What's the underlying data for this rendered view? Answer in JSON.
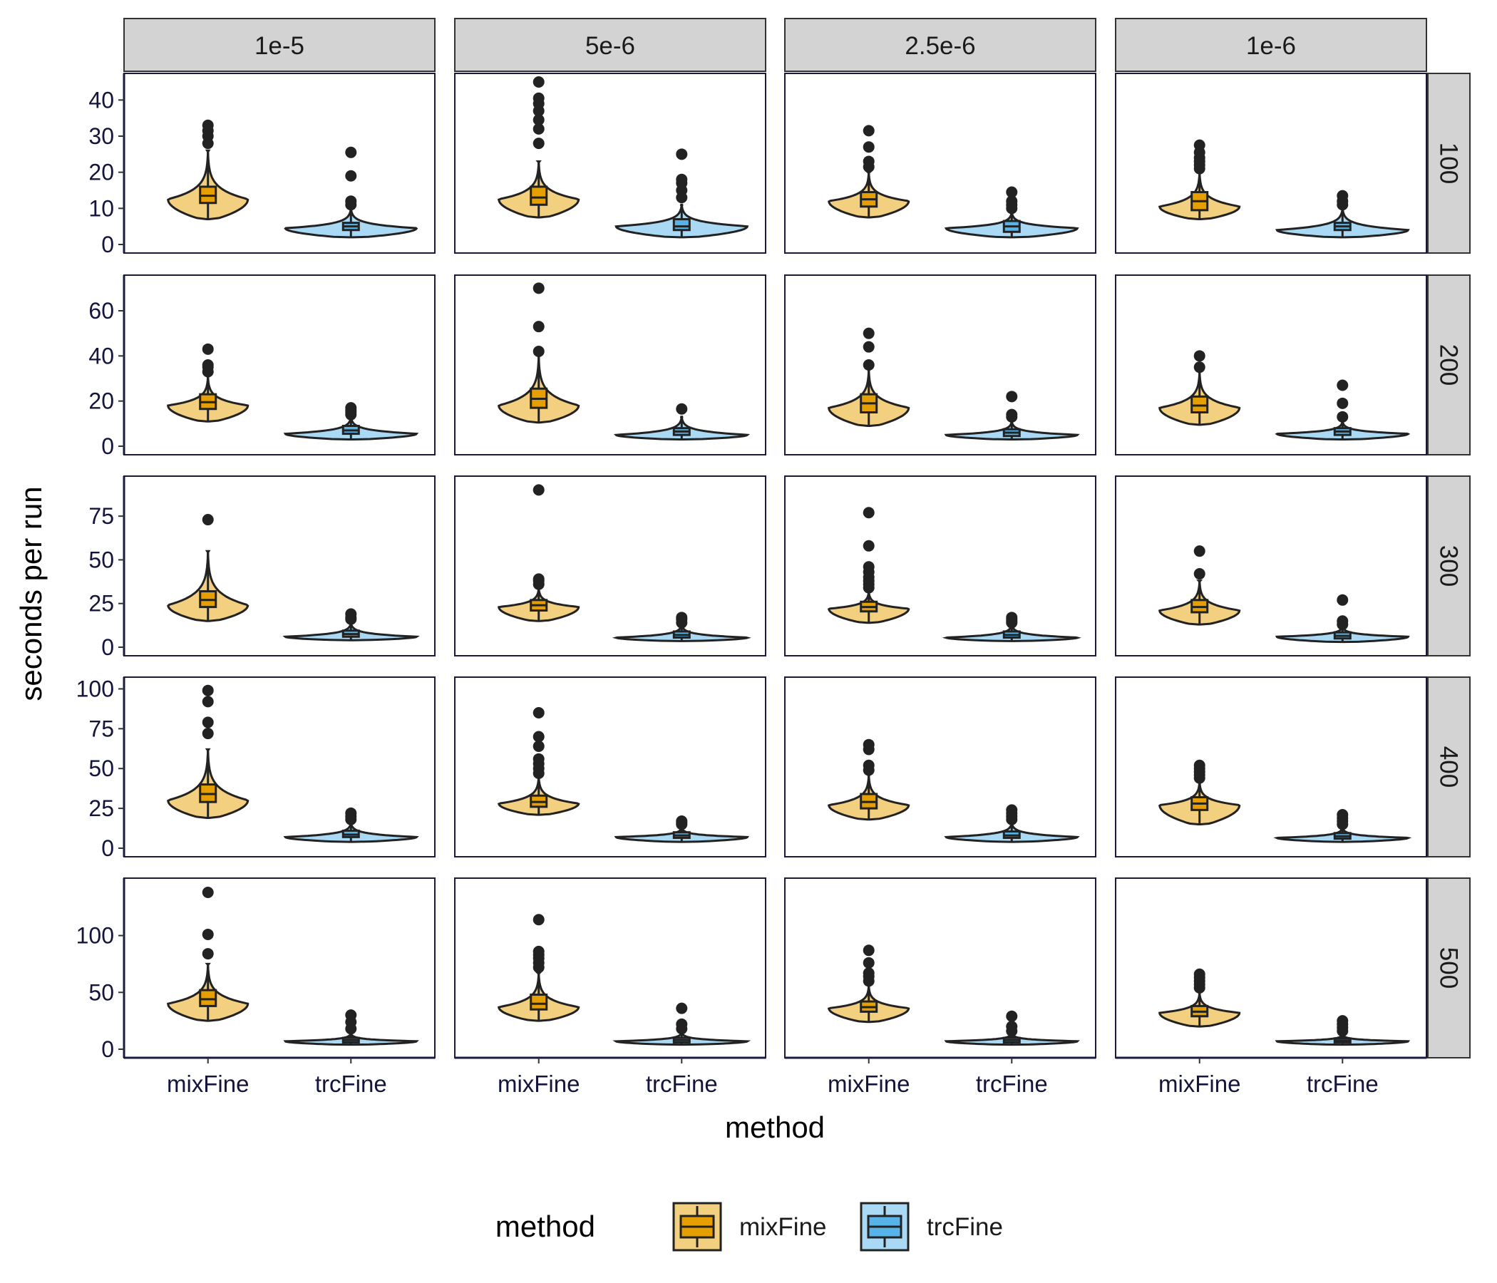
{
  "chart_data": {
    "type": "violin",
    "title": "",
    "xlabel": "method",
    "ylabel": "seconds per run",
    "categories": [
      "mixFine",
      "trcFine"
    ],
    "col_facets": [
      "1e-5",
      "5e-6",
      "2.5e-6",
      "1e-6"
    ],
    "row_facets": [
      "100",
      "200",
      "300",
      "400",
      "500"
    ],
    "grid": false,
    "legend": {
      "title": "method",
      "position": "bottom",
      "entries": [
        {
          "name": "mixFine",
          "box_color": "#E69F00",
          "violin_color": "#F3CF80"
        },
        {
          "name": "trcFine",
          "box_color": "#56B4E9",
          "violin_color": "#A9D9F4"
        }
      ]
    },
    "rows": [
      {
        "ylim": [
          0,
          45
        ],
        "yticks": [
          0,
          10,
          20,
          30,
          40
        ]
      },
      {
        "ylim": [
          0,
          72
        ],
        "yticks": [
          0,
          20,
          40,
          60
        ]
      },
      {
        "ylim": [
          0,
          93
        ],
        "yticks": [
          0,
          25,
          50,
          75
        ]
      },
      {
        "ylim": [
          0,
          102
        ],
        "yticks": [
          0,
          25,
          50,
          75,
          100
        ]
      },
      {
        "ylim": [
          0,
          143
        ],
        "yticks": [
          0,
          50,
          100
        ]
      }
    ],
    "panels": [
      {
        "row": "100",
        "col": "1e-5",
        "groups": [
          {
            "method": "mixFine",
            "min": 7,
            "q1": 11.5,
            "median": 13.5,
            "q3": 16,
            "max": 26,
            "mode": 12.5,
            "outliers": [
              28,
              30,
              31.5,
              33
            ]
          },
          {
            "method": "trcFine",
            "min": 2,
            "q1": 4,
            "median": 5,
            "q3": 6,
            "max": 10,
            "mode": 4.5,
            "outliers": [
              11,
              12,
              19,
              25.5
            ]
          }
        ]
      },
      {
        "row": "100",
        "col": "5e-6",
        "groups": [
          {
            "method": "mixFine",
            "min": 7.5,
            "q1": 11,
            "median": 13,
            "q3": 16,
            "max": 23,
            "mode": 12.5,
            "outliers": [
              28,
              32,
              34.5,
              37,
              39,
              40.5,
              45
            ]
          },
          {
            "method": "trcFine",
            "min": 2,
            "q1": 4,
            "median": 5,
            "q3": 7,
            "max": 11,
            "mode": 5,
            "outliers": [
              13,
              15,
              17,
              18,
              25
            ]
          }
        ]
      },
      {
        "row": "100",
        "col": "2.5e-6",
        "groups": [
          {
            "method": "mixFine",
            "min": 7.5,
            "q1": 10.5,
            "median": 12.5,
            "q3": 14.5,
            "max": 20,
            "mode": 12,
            "outliers": [
              21.5,
              23,
              27,
              31.5
            ]
          },
          {
            "method": "trcFine",
            "min": 2,
            "q1": 3.5,
            "median": 5,
            "q3": 6.5,
            "max": 9,
            "mode": 4.5,
            "outliers": [
              10,
              11,
              12,
              14.5
            ]
          }
        ]
      },
      {
        "row": "100",
        "col": "1e-6",
        "groups": [
          {
            "method": "mixFine",
            "min": 7,
            "q1": 9.5,
            "median": 12,
            "q3": 14.5,
            "max": 20,
            "mode": 10.5,
            "outliers": [
              21,
              22,
              23,
              24,
              25.5,
              27.5
            ]
          },
          {
            "method": "trcFine",
            "min": 2,
            "q1": 4,
            "median": 5,
            "q3": 6,
            "max": 10,
            "mode": 4,
            "outliers": [
              11,
              12,
              13.5
            ]
          }
        ]
      },
      {
        "row": "200",
        "col": "1e-5",
        "groups": [
          {
            "method": "mixFine",
            "min": 11,
            "q1": 16.5,
            "median": 19.5,
            "q3": 23,
            "max": 31,
            "mode": 18,
            "outliers": [
              33,
              35,
              36,
              43
            ]
          },
          {
            "method": "trcFine",
            "min": 3,
            "q1": 5.5,
            "median": 7,
            "q3": 9,
            "max": 13,
            "mode": 5.5,
            "outliers": [
              14,
              15,
              16,
              17
            ]
          }
        ]
      },
      {
        "row": "200",
        "col": "5e-6",
        "groups": [
          {
            "method": "mixFine",
            "min": 10.5,
            "q1": 17,
            "median": 21,
            "q3": 25.5,
            "max": 40,
            "mode": 18,
            "outliers": [
              42,
              53,
              70
            ]
          },
          {
            "method": "trcFine",
            "min": 3,
            "q1": 5,
            "median": 6.5,
            "q3": 8,
            "max": 13,
            "mode": 5,
            "outliers": [
              16.5
            ]
          }
        ]
      },
      {
        "row": "200",
        "col": "2.5e-6",
        "groups": [
          {
            "method": "mixFine",
            "min": 9,
            "q1": 15,
            "median": 19,
            "q3": 23,
            "max": 34,
            "mode": 17,
            "outliers": [
              36,
              44,
              50
            ]
          },
          {
            "method": "trcFine",
            "min": 3,
            "q1": 4.5,
            "median": 6,
            "q3": 7.5,
            "max": 11,
            "mode": 5,
            "outliers": [
              13,
              14,
              22
            ]
          }
        ]
      },
      {
        "row": "200",
        "col": "1e-6",
        "groups": [
          {
            "method": "mixFine",
            "min": 9.5,
            "q1": 15,
            "median": 18,
            "q3": 22,
            "max": 33,
            "mode": 17,
            "outliers": [
              35,
              40
            ]
          },
          {
            "method": "trcFine",
            "min": 3,
            "q1": 5,
            "median": 6.5,
            "q3": 8,
            "max": 11,
            "mode": 5.5,
            "outliers": [
              13,
              19,
              27
            ]
          }
        ]
      },
      {
        "row": "300",
        "col": "1e-5",
        "groups": [
          {
            "method": "mixFine",
            "min": 15,
            "q1": 23,
            "median": 27,
            "q3": 32,
            "max": 55,
            "mode": 24,
            "outliers": [
              73
            ]
          },
          {
            "method": "trcFine",
            "min": 4,
            "q1": 6,
            "median": 7.5,
            "q3": 9.5,
            "max": 14,
            "mode": 6,
            "outliers": [
              16,
              17,
              19
            ]
          }
        ]
      },
      {
        "row": "300",
        "col": "5e-6",
        "groups": [
          {
            "method": "mixFine",
            "min": 15,
            "q1": 21,
            "median": 24,
            "q3": 27,
            "max": 34,
            "mode": 23,
            "outliers": [
              36,
              38,
              39,
              90
            ]
          },
          {
            "method": "trcFine",
            "min": 3.5,
            "q1": 5.5,
            "median": 7,
            "q3": 9,
            "max": 13,
            "mode": 5.5,
            "outliers": [
              14,
              16,
              17
            ]
          }
        ]
      },
      {
        "row": "300",
        "col": "2.5e-6",
        "groups": [
          {
            "method": "mixFine",
            "min": 14,
            "q1": 20.5,
            "median": 23,
            "q3": 26,
            "max": 32,
            "mode": 22,
            "outliers": [
              34,
              36,
              38,
              40,
              43,
              46,
              58,
              77
            ]
          },
          {
            "method": "trcFine",
            "min": 3.5,
            "q1": 5.5,
            "median": 7,
            "q3": 9,
            "max": 13,
            "mode": 5.5,
            "outliers": [
              14,
              15,
              16,
              17
            ]
          }
        ]
      },
      {
        "row": "300",
        "col": "1e-6",
        "groups": [
          {
            "method": "mixFine",
            "min": 13,
            "q1": 20,
            "median": 23,
            "q3": 27,
            "max": 38,
            "mode": 21,
            "outliers": [
              42,
              55
            ]
          },
          {
            "method": "trcFine",
            "min": 3,
            "q1": 5,
            "median": 6.5,
            "q3": 8.5,
            "max": 12,
            "mode": 6,
            "outliers": [
              13,
              15,
              27
            ]
          }
        ]
      },
      {
        "row": "400",
        "col": "1e-5",
        "groups": [
          {
            "method": "mixFine",
            "min": 19,
            "q1": 29,
            "median": 34,
            "q3": 40,
            "max": 62,
            "mode": 30,
            "outliers": [
              72,
              79,
              92,
              99
            ]
          },
          {
            "method": "trcFine",
            "min": 4,
            "q1": 7,
            "median": 8.5,
            "q3": 11,
            "max": 16,
            "mode": 7,
            "outliers": [
              18,
              20,
              22
            ]
          }
        ]
      },
      {
        "row": "400",
        "col": "5e-6",
        "groups": [
          {
            "method": "mixFine",
            "min": 21,
            "q1": 26,
            "median": 29,
            "q3": 33,
            "max": 45,
            "mode": 28,
            "outliers": [
              47,
              50,
              53,
              56,
              64,
              70,
              85
            ]
          },
          {
            "method": "trcFine",
            "min": 4,
            "q1": 6.5,
            "median": 8,
            "q3": 10,
            "max": 13,
            "mode": 7,
            "outliers": [
              15,
              16,
              17
            ]
          }
        ]
      },
      {
        "row": "400",
        "col": "2.5e-6",
        "groups": [
          {
            "method": "mixFine",
            "min": 18,
            "q1": 25,
            "median": 29,
            "q3": 34,
            "max": 46,
            "mode": 27,
            "outliers": [
              49,
              52,
              62,
              65
            ]
          },
          {
            "method": "trcFine",
            "min": 4,
            "q1": 6.5,
            "median": 8,
            "q3": 10.5,
            "max": 16,
            "mode": 7,
            "outliers": [
              18,
              20,
              22,
              24
            ]
          }
        ]
      },
      {
        "row": "400",
        "col": "1e-6",
        "groups": [
          {
            "method": "mixFine",
            "min": 15,
            "q1": 24,
            "median": 28,
            "q3": 32,
            "max": 42,
            "mode": 27,
            "outliers": [
              44,
              46,
              48,
              50,
              52
            ]
          },
          {
            "method": "trcFine",
            "min": 4,
            "q1": 6,
            "median": 7.5,
            "q3": 9.5,
            "max": 13,
            "mode": 6.5,
            "outliers": [
              15,
              17,
              19,
              21
            ]
          }
        ]
      },
      {
        "row": "500",
        "col": "1e-5",
        "groups": [
          {
            "method": "mixFine",
            "min": 25,
            "q1": 38,
            "median": 44,
            "q3": 52,
            "max": 75,
            "mode": 40,
            "outliers": [
              84,
              101,
              138
            ]
          },
          {
            "method": "trcFine",
            "min": 4,
            "q1": 6,
            "median": 8,
            "q3": 10,
            "max": 14,
            "mode": 7,
            "outliers": [
              18,
              24,
              30
            ]
          }
        ]
      },
      {
        "row": "500",
        "col": "5e-6",
        "groups": [
          {
            "method": "mixFine",
            "min": 25,
            "q1": 35,
            "median": 40,
            "q3": 48,
            "max": 67,
            "mode": 37,
            "outliers": [
              72,
              76,
              80,
              83,
              86,
              114
            ]
          },
          {
            "method": "trcFine",
            "min": 4,
            "q1": 6,
            "median": 8,
            "q3": 10,
            "max": 15,
            "mode": 7,
            "outliers": [
              18,
              22,
              36
            ]
          }
        ]
      },
      {
        "row": "500",
        "col": "2.5e-6",
        "groups": [
          {
            "method": "mixFine",
            "min": 24,
            "q1": 33,
            "median": 37,
            "q3": 42,
            "max": 56,
            "mode": 36,
            "outliers": [
              60,
              64,
              67,
              76,
              87
            ]
          },
          {
            "method": "trcFine",
            "min": 4,
            "q1": 6,
            "median": 8,
            "q3": 10,
            "max": 14,
            "mode": 7,
            "outliers": [
              16,
              20,
              29
            ]
          }
        ]
      },
      {
        "row": "500",
        "col": "1e-6",
        "groups": [
          {
            "method": "mixFine",
            "min": 20,
            "q1": 29,
            "median": 33,
            "q3": 38,
            "max": 50,
            "mode": 32,
            "outliers": [
              54,
              57,
              60,
              63,
              66
            ]
          },
          {
            "method": "trcFine",
            "min": 4,
            "q1": 6,
            "median": 7.5,
            "q3": 9.5,
            "max": 13,
            "mode": 7,
            "outliers": [
              16,
              19,
              22,
              25
            ]
          }
        ]
      }
    ]
  }
}
